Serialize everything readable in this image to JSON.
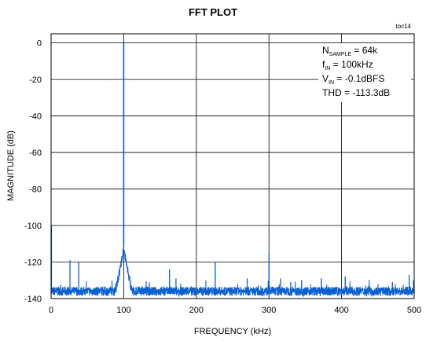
{
  "chart_data": {
    "type": "line",
    "title": "FFT PLOT",
    "tag": "toc14",
    "xlabel": "FREQUENCY (kHz)",
    "ylabel": "MAGNITUDE (dB)",
    "xlim": [
      0,
      500
    ],
    "ylim": [
      -140,
      5
    ],
    "xticks": [
      0,
      100,
      200,
      300,
      400,
      500
    ],
    "yticks": [
      0,
      -20,
      -40,
      -60,
      -80,
      -100,
      -120,
      -140
    ],
    "grid": true,
    "series_color": "#0a5fd1",
    "annotations": {
      "nsample": {
        "main": "N",
        "sub": "SAMPLE",
        "rest": " = 64k"
      },
      "fin": {
        "main": "f",
        "sub": "IN",
        "rest": " = 100kHz"
      },
      "vin": {
        "main": "V",
        "sub": "IN",
        "rest": " = -0.1dBFS"
      },
      "thd": {
        "text": "THD = -113.3dB"
      }
    },
    "noise_floor_db": -136,
    "fundamental": {
      "x": 100,
      "y": -0.1
    },
    "spurs": [
      {
        "x": 0.5,
        "y": -100
      },
      {
        "x": 26,
        "y": -119
      },
      {
        "x": 38,
        "y": -120
      },
      {
        "x": 163,
        "y": -124
      },
      {
        "x": 172,
        "y": -129
      },
      {
        "x": 226,
        "y": -120
      },
      {
        "x": 270,
        "y": -129
      },
      {
        "x": 300,
        "y": -115
      },
      {
        "x": 316,
        "y": -129
      },
      {
        "x": 330,
        "y": -131
      },
      {
        "x": 345,
        "y": -130
      },
      {
        "x": 372,
        "y": -129
      },
      {
        "x": 405,
        "y": -128
      },
      {
        "x": 470,
        "y": -131
      },
      {
        "x": 493,
        "y": -127
      },
      {
        "x": 499,
        "y": -130
      }
    ]
  }
}
